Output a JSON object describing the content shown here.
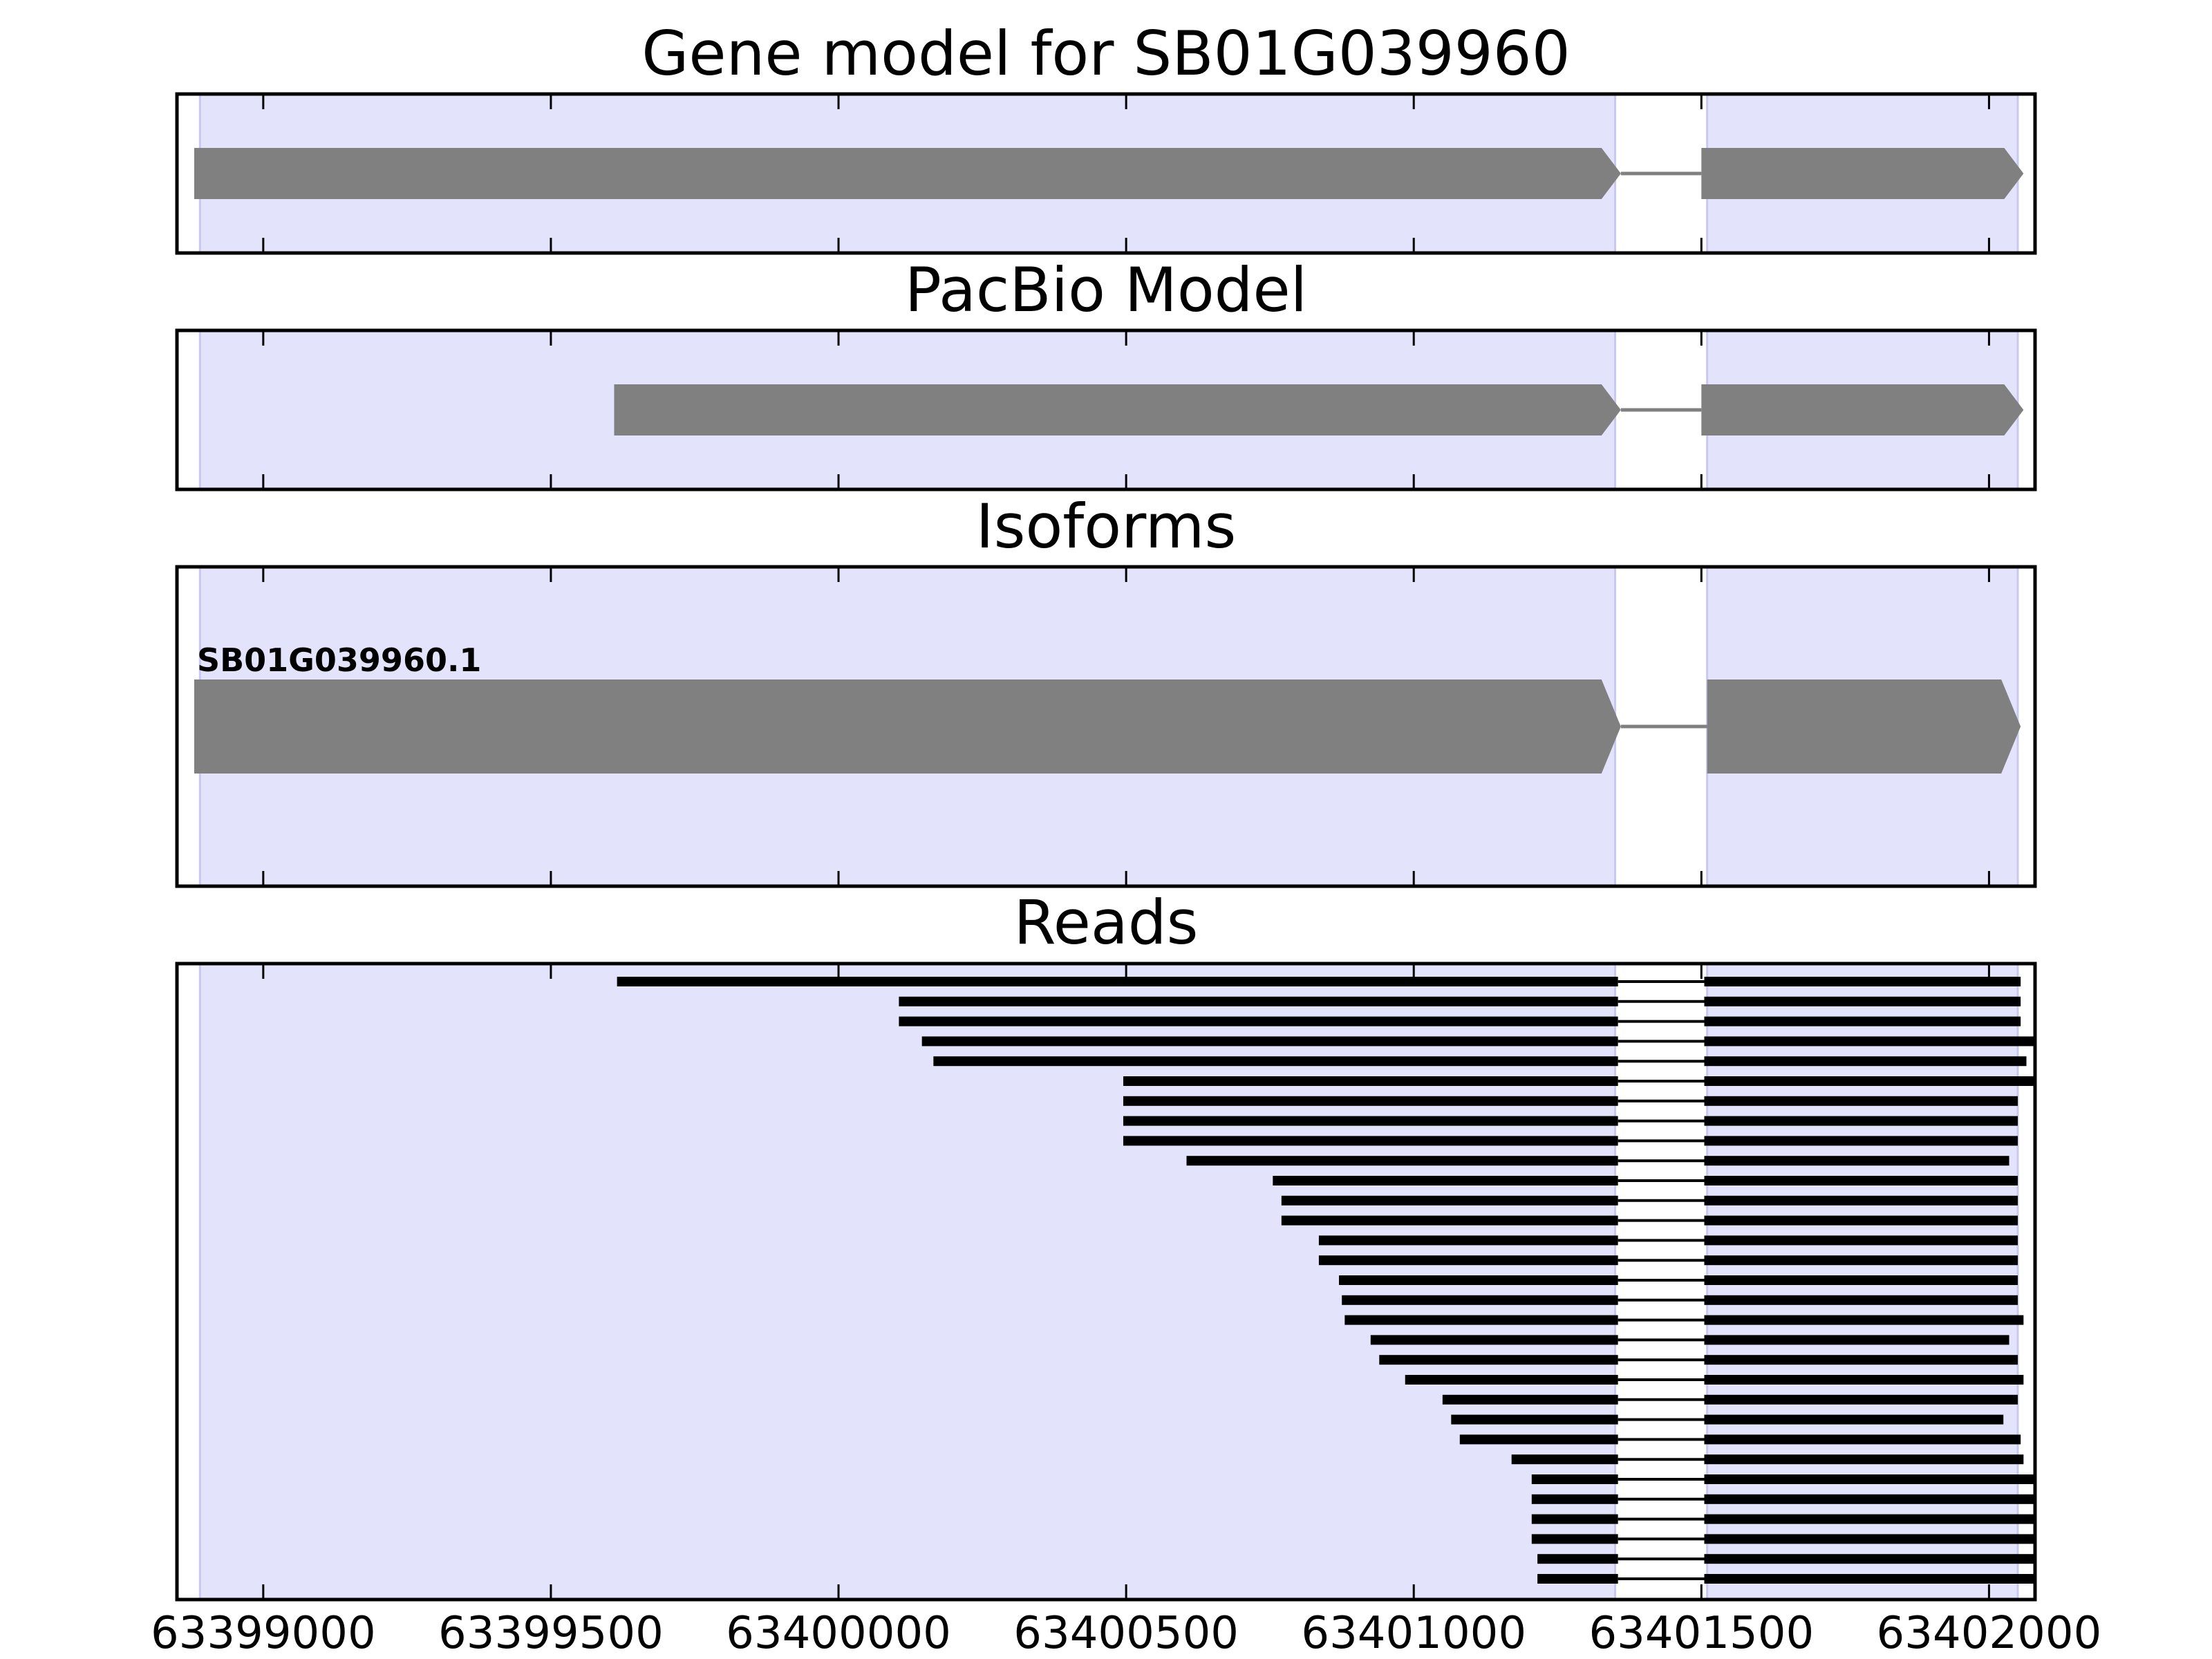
{
  "chart_data": [
    {
      "type": "gene_model",
      "title": "Gene model for SB01G039960",
      "xlim": [
        63398850,
        63402080
      ],
      "shaded_regions": [
        [
          63398890,
          63401350
        ],
        [
          63401510,
          63402050
        ]
      ],
      "models": [
        {
          "exons": [
            [
              63398880,
              63401360
            ],
            [
              63401500,
              63402060
            ]
          ],
          "strand": "+"
        }
      ]
    },
    {
      "type": "gene_model",
      "title": "PacBio Model",
      "xlim": [
        63398850,
        63402080
      ],
      "shaded_regions": [
        [
          63398890,
          63401350
        ],
        [
          63401510,
          63402050
        ]
      ],
      "models": [
        {
          "exons": [
            [
              63399610,
              63401360
            ],
            [
              63401500,
              63402060
            ]
          ],
          "strand": "+"
        }
      ]
    },
    {
      "type": "gene_model",
      "title": "Isoforms",
      "xlim": [
        63398850,
        63402080
      ],
      "shaded_regions": [
        [
          63398890,
          63401350
        ],
        [
          63401510,
          63402050
        ]
      ],
      "models": [
        {
          "name": "SB01G039960.1",
          "exons": [
            [
              63398880,
              63401360
            ],
            [
              63401510,
              63402055
            ]
          ],
          "strand": "+"
        }
      ]
    },
    {
      "type": "reads",
      "title": "Reads",
      "xlim": [
        63398850,
        63402080
      ],
      "xticks": [
        63399000,
        63399500,
        63400000,
        63400500,
        63401000,
        63401500,
        63402000
      ],
      "xticklabels": [
        "63399000",
        "63399500",
        "63400000",
        "63400500",
        "63401000",
        "63401500",
        "63402000"
      ],
      "shaded_regions": [
        [
          63398890,
          63401350
        ],
        [
          63401510,
          63402050
        ]
      ],
      "intron": [
        63401355,
        63401505
      ],
      "reads": [
        [
          63399615,
          63402055
        ],
        [
          63400105,
          63402055
        ],
        [
          63400105,
          63402055
        ],
        [
          63400145,
          63402085
        ],
        [
          63400165,
          63402065
        ],
        [
          63400495,
          63402085
        ],
        [
          63400495,
          63402050
        ],
        [
          63400495,
          63402050
        ],
        [
          63400495,
          63402050
        ],
        [
          63400605,
          63402035
        ],
        [
          63400755,
          63402050
        ],
        [
          63400770,
          63402050
        ],
        [
          63400770,
          63402050
        ],
        [
          63400835,
          63402050
        ],
        [
          63400835,
          63402050
        ],
        [
          63400870,
          63402050
        ],
        [
          63400875,
          63402050
        ],
        [
          63400880,
          63402060
        ],
        [
          63400925,
          63402035
        ],
        [
          63400940,
          63402050
        ],
        [
          63400985,
          63402060
        ],
        [
          63401050,
          63402050
        ],
        [
          63401065,
          63402025
        ],
        [
          63401080,
          63402055
        ],
        [
          63401170,
          63402060
        ],
        [
          63401205,
          63402085
        ],
        [
          63401205,
          63402085
        ],
        [
          63401205,
          63402085
        ],
        [
          63401205,
          63402085
        ],
        [
          63401215,
          63402085
        ],
        [
          63401215,
          63402085
        ]
      ]
    }
  ]
}
